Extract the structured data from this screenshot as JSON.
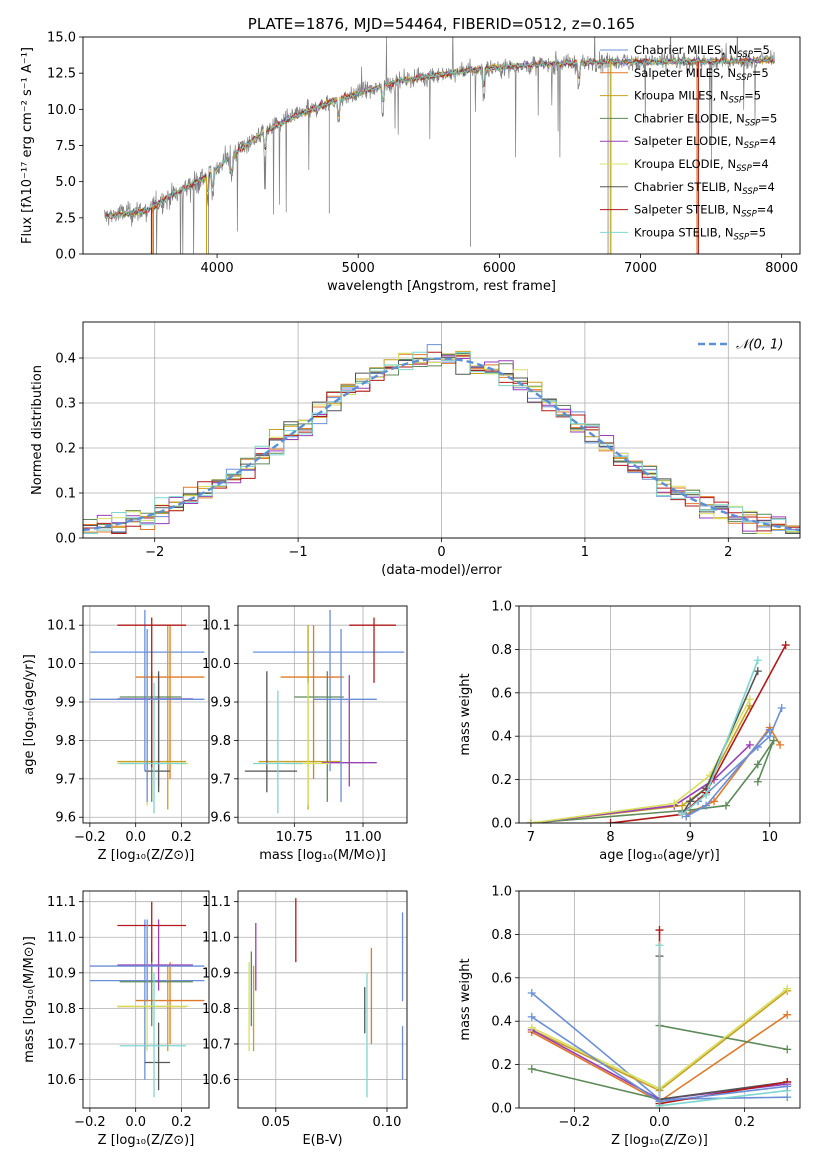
{
  "colors": [
    "#6a8fd8",
    "#e07a2a",
    "#c8a020",
    "#5e8a5a",
    "#9a3fb8",
    "#d8e060",
    "#555555",
    "#b21a1a",
    "#7fd6d0"
  ],
  "labels": {
    "legend": [
      "Chabrier MILES, N",
      "Salpeter MILES, N",
      "Kroupa MILES, N",
      "Chabrier ELODIE, N",
      "Salpeter ELODIE, N",
      "Kroupa ELODIE, N",
      "Chabrier STELIB, N",
      "Salpeter STELIB, N",
      "Kroupa STELIB, N"
    ],
    "legend_sub": "SSP",
    "legend_n": [
      "=5",
      "=5",
      "=5",
      "=5",
      "=4",
      "=4",
      "=4",
      "=4",
      "=5"
    ],
    "normal_label": "𝒩(0, 1)"
  },
  "chart_data": [
    {
      "id": "spectrum",
      "type": "line",
      "title": "PLATE=1876, MJD=54464, FIBERID=0512, z=0.165",
      "xlabel": "wavelength [Angstrom, rest frame]",
      "ylabel": "Flux [fλ10⁻¹⁷ erg cm⁻² s⁻¹ A⁻¹]",
      "xlim": [
        3050,
        8130
      ],
      "ylim": [
        0,
        15
      ],
      "xticks": [
        4000,
        5000,
        6000,
        7000,
        8000
      ],
      "yticks": [
        0.0,
        2.5,
        5.0,
        7.5,
        10.0,
        12.5,
        15.0
      ],
      "grid": false,
      "legend": "top-right",
      "continuum": [
        [
          3200,
          2.6
        ],
        [
          3500,
          3.0
        ],
        [
          3700,
          4.2
        ],
        [
          3950,
          5.5
        ],
        [
          4100,
          6.8
        ],
        [
          4300,
          8.2
        ],
        [
          4500,
          9.3
        ],
        [
          4700,
          10.1
        ],
        [
          4900,
          10.8
        ],
        [
          5100,
          11.4
        ],
        [
          5300,
          12.0
        ],
        [
          5500,
          12.3
        ],
        [
          5800,
          12.7
        ],
        [
          6100,
          13.0
        ],
        [
          6500,
          13.2
        ],
        [
          7000,
          13.3
        ],
        [
          7500,
          13.3
        ],
        [
          7950,
          13.4
        ]
      ]
    },
    {
      "id": "residuals",
      "type": "step",
      "xlabel": "(data-model)/error",
      "ylabel": "Normed distribution",
      "xlim": [
        -2.5,
        2.5
      ],
      "ylim": [
        0,
        0.48
      ],
      "xticks": [
        -2,
        -1,
        0,
        1,
        2
      ],
      "yticks": [
        0.0,
        0.1,
        0.2,
        0.3,
        0.4
      ],
      "grid": true,
      "legend": "top-right"
    },
    {
      "id": "age_vs_Z",
      "type": "errorbar",
      "xlabel": "Z [log₁₀(Z/Z⊙)]",
      "ylabel": "age  [log₁₀(age/yr)]",
      "xlim": [
        -0.23,
        0.32
      ],
      "ylim": [
        9.585,
        10.15
      ],
      "xticks": [
        -0.2,
        0.0,
        0.2
      ],
      "yticks": [
        9.6,
        9.7,
        9.8,
        9.9,
        10.0,
        10.1
      ],
      "grid": true,
      "points": [
        {
          "c": 0,
          "x": 0.04,
          "y": 10.03,
          "xlo": -0.2,
          "xhi": 0.3,
          "ylo": 9.72,
          "yhi": 10.14
        },
        {
          "c": 1,
          "x": 0.15,
          "y": 9.965,
          "xlo": 0.0,
          "xhi": 0.3,
          "ylo": 9.7,
          "yhi": 10.1
        },
        {
          "c": 2,
          "x": 0.14,
          "y": 9.745,
          "xlo": -0.08,
          "xhi": 0.22,
          "ylo": 9.62,
          "yhi": 10.1
        },
        {
          "c": 3,
          "x": 0.07,
          "y": 9.913,
          "xlo": -0.07,
          "xhi": 0.2,
          "ylo": 9.64,
          "yhi": 9.98
        },
        {
          "c": 4,
          "x": 0.1,
          "y": 9.908,
          "xlo": -0.08,
          "xhi": 0.25,
          "ylo": 9.68,
          "yhi": 9.97
        },
        {
          "c": 5,
          "x": 0.05,
          "y": 9.74,
          "xlo": -0.08,
          "xhi": 0.23,
          "ylo": 9.63,
          "yhi": 9.95
        },
        {
          "c": 6,
          "x": 0.1,
          "y": 9.72,
          "xlo": 0.04,
          "xhi": 0.15,
          "ylo": 9.665,
          "yhi": 9.98
        },
        {
          "c": 7,
          "x": 0.07,
          "y": 10.1,
          "xlo": -0.08,
          "xhi": 0.22,
          "ylo": 9.73,
          "yhi": 10.12
        },
        {
          "c": 8,
          "x": 0.08,
          "y": 9.74,
          "xlo": -0.07,
          "xhi": 0.22,
          "ylo": 9.61,
          "yhi": 9.95
        },
        {
          "c": 9,
          "x": 0.05,
          "y": 9.907,
          "xlo": -0.2,
          "xhi": 0.3,
          "ylo": 9.64,
          "yhi": 10.09
        }
      ]
    },
    {
      "id": "age_vs_mass",
      "type": "errorbar",
      "xlabel": "mass [log₁₀(M/M⊙)]",
      "ylabel": "",
      "xlim": [
        10.545,
        11.16
      ],
      "ylim": [
        9.585,
        10.15
      ],
      "xticks": [
        10.75,
        11.0
      ],
      "yticks": [
        9.6,
        9.7,
        9.8,
        9.9,
        10.0,
        10.1
      ],
      "grid": true,
      "points": [
        {
          "c": 0,
          "x": 10.88,
          "y": 10.03,
          "xlo": 10.6,
          "xhi": 11.15,
          "ylo": 9.72,
          "yhi": 10.14
        },
        {
          "c": 1,
          "x": 10.82,
          "y": 9.965,
          "xlo": 10.7,
          "xhi": 10.93,
          "ylo": 9.7,
          "yhi": 10.1
        },
        {
          "c": 2,
          "x": 10.8,
          "y": 9.745,
          "xlo": 10.62,
          "xhi": 10.92,
          "ylo": 9.62,
          "yhi": 10.1
        },
        {
          "c": 3,
          "x": 10.87,
          "y": 9.913,
          "xlo": 10.75,
          "xhi": 10.93,
          "ylo": 9.64,
          "yhi": 9.98
        },
        {
          "c": 4,
          "x": 10.95,
          "y": 9.742,
          "xlo": 10.85,
          "xhi": 11.05,
          "ylo": 9.68,
          "yhi": 9.97
        },
        {
          "c": 5,
          "x": 10.8,
          "y": 9.74,
          "xlo": 10.72,
          "xhi": 10.88,
          "ylo": 9.63,
          "yhi": 9.95
        },
        {
          "c": 6,
          "x": 10.65,
          "y": 9.72,
          "xlo": 10.57,
          "xhi": 10.76,
          "ylo": 9.665,
          "yhi": 9.98
        },
        {
          "c": 7,
          "x": 11.04,
          "y": 10.1,
          "xlo": 10.95,
          "xhi": 11.12,
          "ylo": 9.95,
          "yhi": 10.12
        },
        {
          "c": 8,
          "x": 10.69,
          "y": 9.74,
          "xlo": 10.6,
          "xhi": 10.78,
          "ylo": 9.61,
          "yhi": 9.93
        },
        {
          "c": 9,
          "x": 10.92,
          "y": 9.907,
          "xlo": 10.82,
          "xhi": 11.05,
          "ylo": 9.64,
          "yhi": 10.09
        }
      ]
    },
    {
      "id": "massweight_vs_age",
      "type": "line",
      "xlabel": "age  [log₁₀(age/yr)]",
      "ylabel": "mass weight",
      "xlim": [
        6.85,
        10.38
      ],
      "ylim": [
        0,
        1.0
      ],
      "xticks": [
        7,
        8,
        9,
        10
      ],
      "yticks": [
        0.0,
        0.2,
        0.4,
        0.6,
        0.8,
        1.0
      ],
      "grid": true,
      "series": [
        {
          "c": 0,
          "points": [
            [
              8.9,
              0.05
            ],
            [
              9.1,
              0.1
            ],
            [
              9.85,
              0.35
            ],
            [
              10.0,
              0.4
            ],
            [
              10.15,
              0.53
            ]
          ]
        },
        {
          "c": 1,
          "points": [
            [
              8.95,
              0.04
            ],
            [
              9.3,
              0.1
            ],
            [
              10.0,
              0.44
            ],
            [
              10.13,
              0.36
            ]
          ]
        },
        {
          "c": 2,
          "points": [
            [
              7.0,
              0.0
            ],
            [
              8.9,
              0.08
            ],
            [
              9.2,
              0.16
            ],
            [
              9.75,
              0.54
            ]
          ]
        },
        {
          "c": 3,
          "points": [
            [
              7.0,
              0.0
            ],
            [
              9.0,
              0.06
            ],
            [
              9.45,
              0.08
            ],
            [
              9.85,
              0.27
            ],
            [
              10.05,
              0.38
            ],
            [
              9.85,
              0.19
            ]
          ]
        },
        {
          "c": 4,
          "points": [
            [
              7.0,
              0.0
            ],
            [
              8.8,
              0.08
            ],
            [
              9.3,
              0.2
            ],
            [
              9.75,
              0.36
            ]
          ]
        },
        {
          "c": 5,
          "points": [
            [
              7.0,
              0.0
            ],
            [
              8.8,
              0.09
            ],
            [
              9.25,
              0.22
            ],
            [
              9.75,
              0.57
            ]
          ]
        },
        {
          "c": 6,
          "points": [
            [
              8.9,
              0.04
            ],
            [
              9.0,
              0.1
            ],
            [
              9.2,
              0.16
            ],
            [
              9.85,
              0.7
            ]
          ]
        },
        {
          "c": 7,
          "points": [
            [
              8.0,
              0.0
            ],
            [
              8.9,
              0.04
            ],
            [
              9.2,
              0.14
            ],
            [
              10.2,
              0.82
            ]
          ]
        },
        {
          "c": 8,
          "points": [
            [
              8.9,
              0.04
            ],
            [
              9.2,
              0.13
            ],
            [
              9.85,
              0.75
            ]
          ]
        },
        {
          "c": 9,
          "points": [
            [
              8.95,
              0.03
            ],
            [
              9.2,
              0.08
            ],
            [
              10.0,
              0.43
            ]
          ]
        }
      ]
    },
    {
      "id": "mass_vs_Z",
      "type": "errorbar",
      "xlabel": "Z [log₁₀(Z/Z⊙)]",
      "ylabel": "mass [log₁₀(M/M⊙)]",
      "xlim": [
        -0.23,
        0.32
      ],
      "ylim": [
        10.52,
        11.13
      ],
      "xticks": [
        -0.2,
        0.0,
        0.2
      ],
      "yticks": [
        10.6,
        10.7,
        10.8,
        10.9,
        11.0,
        11.1
      ],
      "grid": true,
      "points": [
        {
          "c": 0,
          "x": 0.04,
          "y": 10.878,
          "xlo": -0.2,
          "xhi": 0.3,
          "ylo": 10.6,
          "yhi": 11.05
        },
        {
          "c": 1,
          "x": 0.15,
          "y": 10.822,
          "xlo": 0.0,
          "xhi": 0.3,
          "ylo": 10.7,
          "yhi": 10.93
        },
        {
          "c": 2,
          "x": 0.14,
          "y": 10.805,
          "xlo": -0.08,
          "xhi": 0.22,
          "ylo": 10.68,
          "yhi": 10.92
        },
        {
          "c": 3,
          "x": 0.07,
          "y": 10.875,
          "xlo": -0.07,
          "xhi": 0.25,
          "ylo": 10.75,
          "yhi": 10.96
        },
        {
          "c": 4,
          "x": 0.1,
          "y": 10.922,
          "xlo": -0.08,
          "xhi": 0.25,
          "ylo": 10.85,
          "yhi": 11.05
        },
        {
          "c": 5,
          "x": 0.05,
          "y": 10.806,
          "xlo": -0.08,
          "xhi": 0.23,
          "ylo": 10.68,
          "yhi": 10.96
        },
        {
          "c": 6,
          "x": 0.1,
          "y": 10.648,
          "xlo": 0.04,
          "xhi": 0.15,
          "ylo": 10.57,
          "yhi": 10.76
        },
        {
          "c": 7,
          "x": 0.07,
          "y": 11.033,
          "xlo": -0.08,
          "xhi": 0.22,
          "ylo": 10.93,
          "yhi": 11.1
        },
        {
          "c": 8,
          "x": 0.08,
          "y": 10.695,
          "xlo": -0.07,
          "xhi": 0.22,
          "ylo": 10.55,
          "yhi": 10.9
        },
        {
          "c": 9,
          "x": 0.05,
          "y": 10.919,
          "xlo": -0.2,
          "xhi": 0.3,
          "ylo": 10.82,
          "yhi": 11.05
        }
      ]
    },
    {
      "id": "mass_vs_ebv",
      "type": "errorbar",
      "xlabel": "E(B-V)",
      "ylabel": "",
      "xlim": [
        0.033,
        0.109
      ],
      "ylim": [
        10.52,
        11.13
      ],
      "xticks": [
        0.05,
        0.1
      ],
      "yticks": [
        10.6,
        10.7,
        10.8,
        10.9,
        11.0,
        11.1
      ],
      "grid": true,
      "points": [
        {
          "c": 0,
          "x": 0.107,
          "ylo": 10.6,
          "yhi": 10.75
        },
        {
          "c": 1,
          "x": 0.093,
          "ylo": 10.7,
          "yhi": 10.97
        },
        {
          "c": 2,
          "x": 0.04,
          "ylo": 10.68,
          "yhi": 10.92
        },
        {
          "c": 3,
          "x": 0.039,
          "ylo": 10.75,
          "yhi": 10.96
        },
        {
          "c": 4,
          "x": 0.041,
          "ylo": 10.85,
          "yhi": 11.04
        },
        {
          "c": 5,
          "x": 0.038,
          "ylo": 10.68,
          "yhi": 10.93
        },
        {
          "c": 6,
          "x": 0.09,
          "ylo": 10.73,
          "yhi": 10.86
        },
        {
          "c": 7,
          "x": 0.059,
          "ylo": 10.93,
          "yhi": 11.11
        },
        {
          "c": 8,
          "x": 0.091,
          "ylo": 10.55,
          "yhi": 10.9
        },
        {
          "c": 9,
          "x": 0.107,
          "ylo": 10.82,
          "yhi": 11.07
        }
      ]
    },
    {
      "id": "massweight_vs_Z",
      "type": "line",
      "xlabel": "Z [log₁₀(Z/Z⊙)]",
      "ylabel": "mass weight",
      "xlim": [
        -0.33,
        0.33
      ],
      "ylim": [
        0,
        1.0
      ],
      "xticks": [
        -0.2,
        0.0,
        0.2
      ],
      "yticks": [
        0.0,
        0.2,
        0.4,
        0.6,
        0.8,
        1.0
      ],
      "grid": true,
      "series": [
        {
          "c": 0,
          "points": [
            [
              -0.3,
              0.53
            ],
            [
              0.0,
              0.04
            ],
            [
              0.3,
              0.05
            ]
          ]
        },
        {
          "c": 1,
          "points": [
            [
              -0.3,
              0.35
            ],
            [
              0.0,
              0.03
            ],
            [
              0.3,
              0.43
            ]
          ]
        },
        {
          "c": 2,
          "points": [
            [
              -0.3,
              0.36
            ],
            [
              0.0,
              0.08
            ],
            [
              0.3,
              0.54
            ]
          ]
        },
        {
          "c": 3,
          "points": [
            [
              -0.3,
              0.18
            ],
            [
              0.0,
              0.04
            ],
            [
              0.0,
              0.38
            ],
            [
              0.3,
              0.27
            ]
          ]
        },
        {
          "c": 4,
          "points": [
            [
              -0.3,
              0.36
            ],
            [
              0.0,
              0.04
            ],
            [
              0.3,
              0.11
            ]
          ]
        },
        {
          "c": 5,
          "points": [
            [
              -0.3,
              0.37
            ],
            [
              0.0,
              0.09
            ],
            [
              0.3,
              0.55
            ]
          ]
        },
        {
          "c": 6,
          "points": [
            [
              0.0,
              0.7
            ],
            [
              0.0,
              0.04
            ],
            [
              0.3,
              0.12
            ]
          ]
        },
        {
          "c": 7,
          "points": [
            [
              0.0,
              0.82
            ],
            [
              0.0,
              0.02
            ],
            [
              0.3,
              0.12
            ]
          ]
        },
        {
          "c": 8,
          "points": [
            [
              0.0,
              0.75
            ],
            [
              0.0,
              0.01
            ],
            [
              0.3,
              0.08
            ]
          ]
        },
        {
          "c": 9,
          "points": [
            [
              -0.3,
              0.42
            ],
            [
              0.0,
              0.03
            ],
            [
              0.3,
              0.1
            ]
          ]
        }
      ]
    }
  ]
}
